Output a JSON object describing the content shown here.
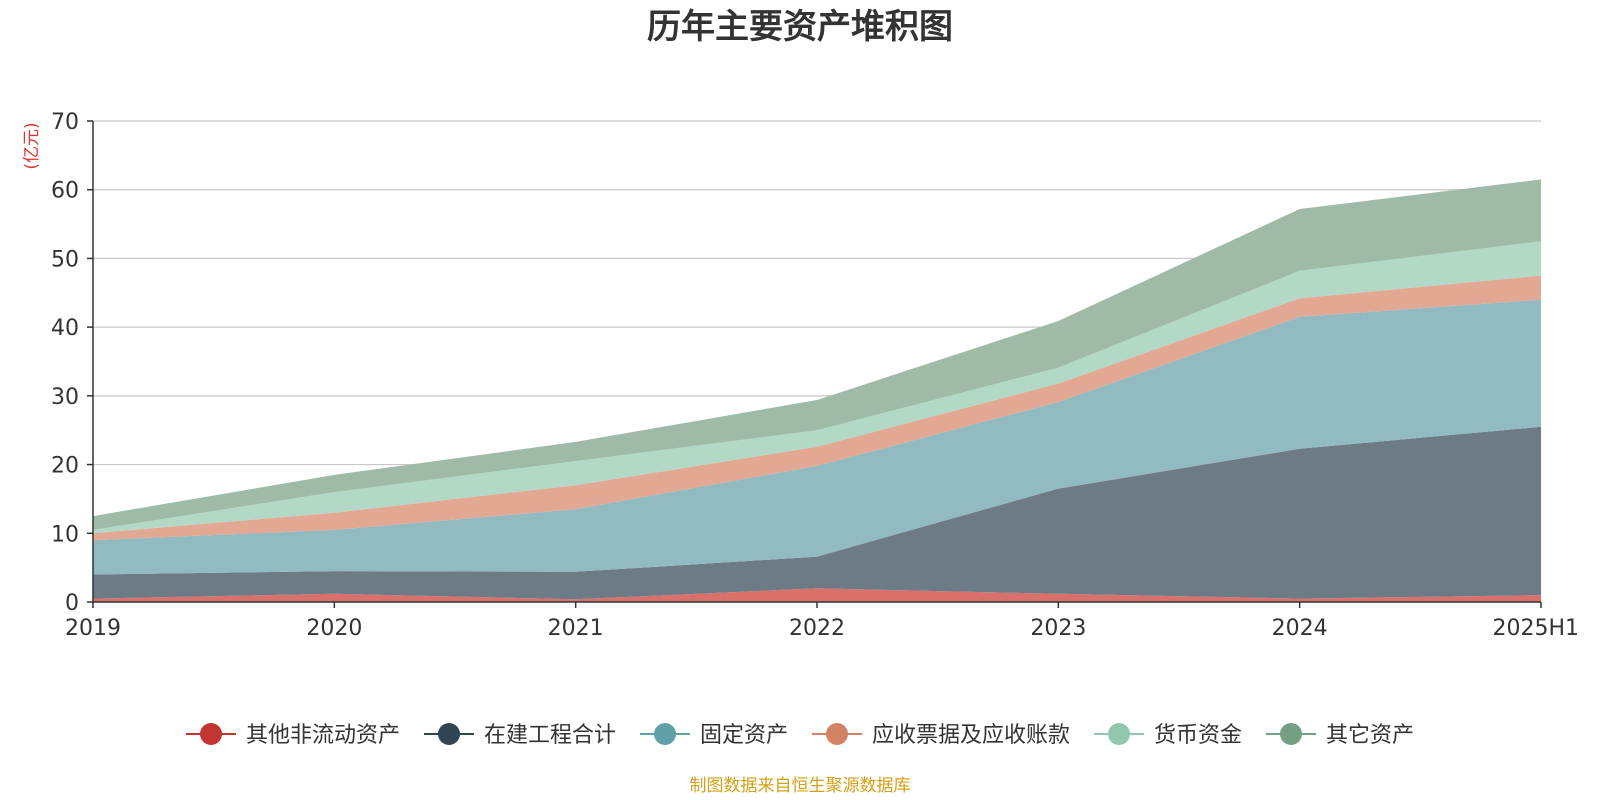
{
  "chart_data": {
    "type": "area",
    "stacked": true,
    "title": "历年主要资产堆积图",
    "y_unit": "(亿元)",
    "x": [
      "2019",
      "2020",
      "2021",
      "2022",
      "2023",
      "2024",
      "2025H1"
    ],
    "ylim": [
      0,
      70
    ],
    "y_ticks": [
      0,
      10,
      20,
      30,
      40,
      50,
      60,
      70
    ],
    "grid": true,
    "legend_position": "bottom",
    "series": [
      {
        "name": "其他非流动资产",
        "color": "#c23531",
        "fill": "#d9706b",
        "values": [
          0.5,
          1.2,
          0.4,
          2.0,
          1.2,
          0.5,
          1.0
        ]
      },
      {
        "name": "在建工程合计",
        "color": "#2f4554",
        "fill": "#6d7b86",
        "values": [
          3.5,
          3.3,
          4.0,
          4.6,
          15.3,
          21.8,
          24.5
        ]
      },
      {
        "name": "固定资产",
        "color": "#61a0a8",
        "fill": "#91bbc1",
        "values": [
          5.0,
          6.0,
          9.1,
          13.2,
          12.6,
          19.2,
          18.5
        ]
      },
      {
        "name": "应收票据及应收账款",
        "color": "#d48265",
        "fill": "#e3a893",
        "values": [
          1.0,
          2.5,
          3.5,
          2.8,
          2.7,
          2.7,
          3.5
        ]
      },
      {
        "name": "货币资金",
        "color": "#91c7ae",
        "fill": "#b2d9c6",
        "values": [
          0.5,
          3.0,
          3.5,
          2.4,
          2.3,
          4.0,
          5.0
        ]
      },
      {
        "name": "其它资产",
        "color": "#749f83",
        "fill": "#9fbba7",
        "values": [
          2.0,
          2.5,
          2.8,
          4.4,
          6.8,
          9.0,
          9.0
        ]
      }
    ]
  },
  "source_note": "制图数据来自恒生聚源数据库",
  "colors": {
    "unit_label": "#e03030",
    "source_note": "#d4a017",
    "axis": "#333333",
    "grid": "#c8c8c8"
  }
}
